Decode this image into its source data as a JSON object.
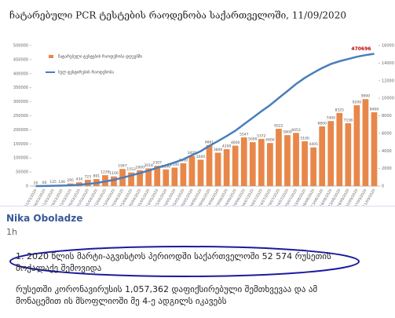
{
  "chart_data": {
    "type": "bar",
    "title": "ჩატარებული PCR ტესტების რაოდენობა საქართველოში, 11/09/2020",
    "annotation": "470696",
    "categories": [
      "01/03/2020",
      "06/03/2020",
      "11/03/2020",
      "16/03/2020",
      "21/03/2020",
      "26/03/2020",
      "31/03/2020",
      "05/04/2020",
      "10/04/2020",
      "15/04/2020",
      "20/04/2020",
      "25/04/2020",
      "30/04/2020",
      "05/05/2020",
      "10/05/2020",
      "15/05/2020",
      "20/05/2020",
      "25/05/2020",
      "30/05/2020",
      "04/06/2020",
      "09/06/2020",
      "14/06/2020",
      "19/06/2020",
      "24/06/2020",
      "29/06/2020",
      "04/07/2020",
      "09/07/2020",
      "14/07/2020",
      "19/07/2020",
      "24/07/2020",
      "29/07/2020",
      "03/08/2020",
      "08/08/2020",
      "13/08/2020",
      "18/08/2020",
      "23/08/2020",
      "28/08/2020",
      "02/09/2020",
      "07/09/2020",
      "11/09/2020"
    ],
    "series": [
      {
        "name": "ჩატარებული ტესტების რაოდენობა დღეებში",
        "color": "#e8874a",
        "axis": "y2",
        "values": [
          20,
          60,
          125,
          146,
          295,
          434,
          723,
          801,
          1239,
          1100,
          1947,
          1553,
          1800,
          2018,
          2307,
          1896,
          2100,
          2600,
          3429,
          3000,
          4661,
          3800,
          4200,
          4600,
          5547,
          5000,
          5372,
          4900,
          6522,
          5800,
          6053,
          5100,
          4405,
          6800,
          7400,
          8325,
          7158,
          9200,
          9900,
          8400
        ]
      },
      {
        "name": "სულ ტესტირების რაოდენობა",
        "color": "#4a7ebb",
        "type": "line",
        "values": [
          100,
          400,
          1000,
          1700,
          2900,
          4600,
          7500,
          11000,
          16500,
          22000,
          30000,
          38000,
          46000,
          55000,
          65000,
          74000,
          84000,
          95000,
          110000,
          124000,
          143000,
          160000,
          178000,
          197000,
          220000,
          243000,
          266000,
          288000,
          313000,
          338000,
          363000,
          385000,
          403000,
          420000,
          434000,
          444000,
          452000,
          460000,
          466000,
          470696
        ]
      }
    ],
    "ylim": [
      0,
      500000
    ],
    "yticks": [
      0,
      50000,
      100000,
      150000,
      200000,
      250000,
      300000,
      350000,
      400000,
      450000,
      500000
    ],
    "y2lim": [
      0,
      16000
    ],
    "y2ticks": [
      0,
      2000,
      4000,
      6000,
      8000,
      10000,
      12000,
      14000,
      16000
    ],
    "grid": false
  },
  "post": {
    "author": "Nika Oboladze",
    "time": "1h",
    "paragraphs": [
      "1. 2020 წლის მარტი-აგვისტოს პერიოდში საქართველოში 52 574 რუსეთის მოქალაქე შემოვიდა",
      "რუსეთში კორონავირუსის 1,057,362 დაფიქსირებული შემთხვევაა და ამ მონაცემით ის მსოფლიოში მე 4-ე ადგილს იკავებს"
    ]
  }
}
